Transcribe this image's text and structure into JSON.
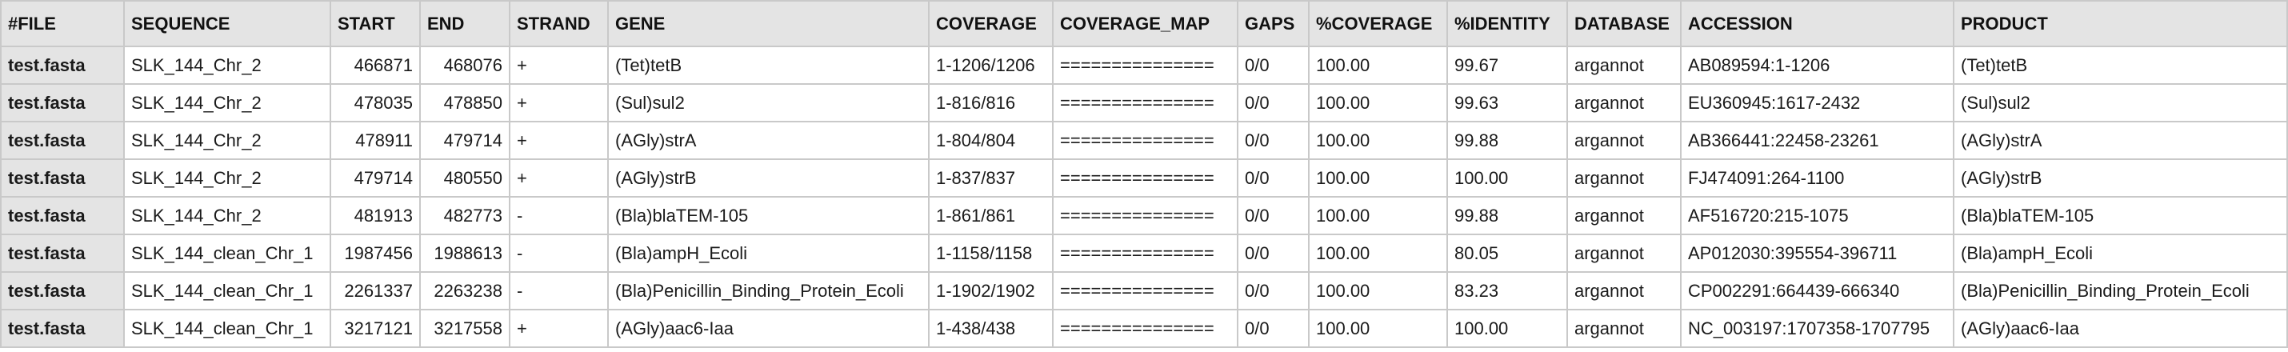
{
  "columns": [
    "#FILE",
    "SEQUENCE",
    "START",
    "END",
    "STRAND",
    "GENE",
    "COVERAGE",
    "COVERAGE_MAP",
    "GAPS",
    "%COVERAGE",
    "%IDENTITY",
    "DATABASE",
    "ACCESSION",
    "PRODUCT"
  ],
  "rows": [
    [
      "test.fasta",
      "SLK_144_Chr_2",
      "466871",
      "468076",
      "+",
      "(Tet)tetB",
      "1-1206/1206",
      "===============",
      "0/0",
      "100.00",
      "99.67",
      "argannot",
      "AB089594:1-1206",
      "(Tet)tetB"
    ],
    [
      "test.fasta",
      "SLK_144_Chr_2",
      "478035",
      "478850",
      "+",
      "(Sul)sul2",
      "1-816/816",
      "===============",
      "0/0",
      "100.00",
      "99.63",
      "argannot",
      "EU360945:1617-2432",
      "(Sul)sul2"
    ],
    [
      "test.fasta",
      "SLK_144_Chr_2",
      "478911",
      "479714",
      "+",
      "(AGly)strA",
      "1-804/804",
      "===============",
      "0/0",
      "100.00",
      "99.88",
      "argannot",
      "AB366441:22458-23261",
      "(AGly)strA"
    ],
    [
      "test.fasta",
      "SLK_144_Chr_2",
      "479714",
      "480550",
      "+",
      "(AGly)strB",
      "1-837/837",
      "===============",
      "0/0",
      "100.00",
      "100.00",
      "argannot",
      "FJ474091:264-1100",
      "(AGly)strB"
    ],
    [
      "test.fasta",
      "SLK_144_Chr_2",
      "481913",
      "482773",
      "-",
      "(Bla)blaTEM-105",
      "1-861/861",
      "===============",
      "0/0",
      "100.00",
      "99.88",
      "argannot",
      "AF516720:215-1075",
      "(Bla)blaTEM-105"
    ],
    [
      "test.fasta",
      "SLK_144_clean_Chr_1",
      "1987456",
      "1988613",
      "-",
      "(Bla)ampH_Ecoli",
      "1-1158/1158",
      "===============",
      "0/0",
      "100.00",
      "80.05",
      "argannot",
      "AP012030:395554-396711",
      "(Bla)ampH_Ecoli"
    ],
    [
      "test.fasta",
      "SLK_144_clean_Chr_1",
      "2261337",
      "2263238",
      "-",
      "(Bla)Penicillin_Binding_Protein_Ecoli",
      "1-1902/1902",
      "===============",
      "0/0",
      "100.00",
      "83.23",
      "argannot",
      "CP002291:664439-666340",
      "(Bla)Penicillin_Binding_Protein_Ecoli"
    ],
    [
      "test.fasta",
      "SLK_144_clean_Chr_1",
      "3217121",
      "3217558",
      "+",
      "(AGly)aac6-Iaa",
      "1-438/438",
      "===============",
      "0/0",
      "100.00",
      "100.00",
      "argannot",
      "NC_003197:1707358-1707795",
      "(AGly)aac6-Iaa"
    ]
  ]
}
